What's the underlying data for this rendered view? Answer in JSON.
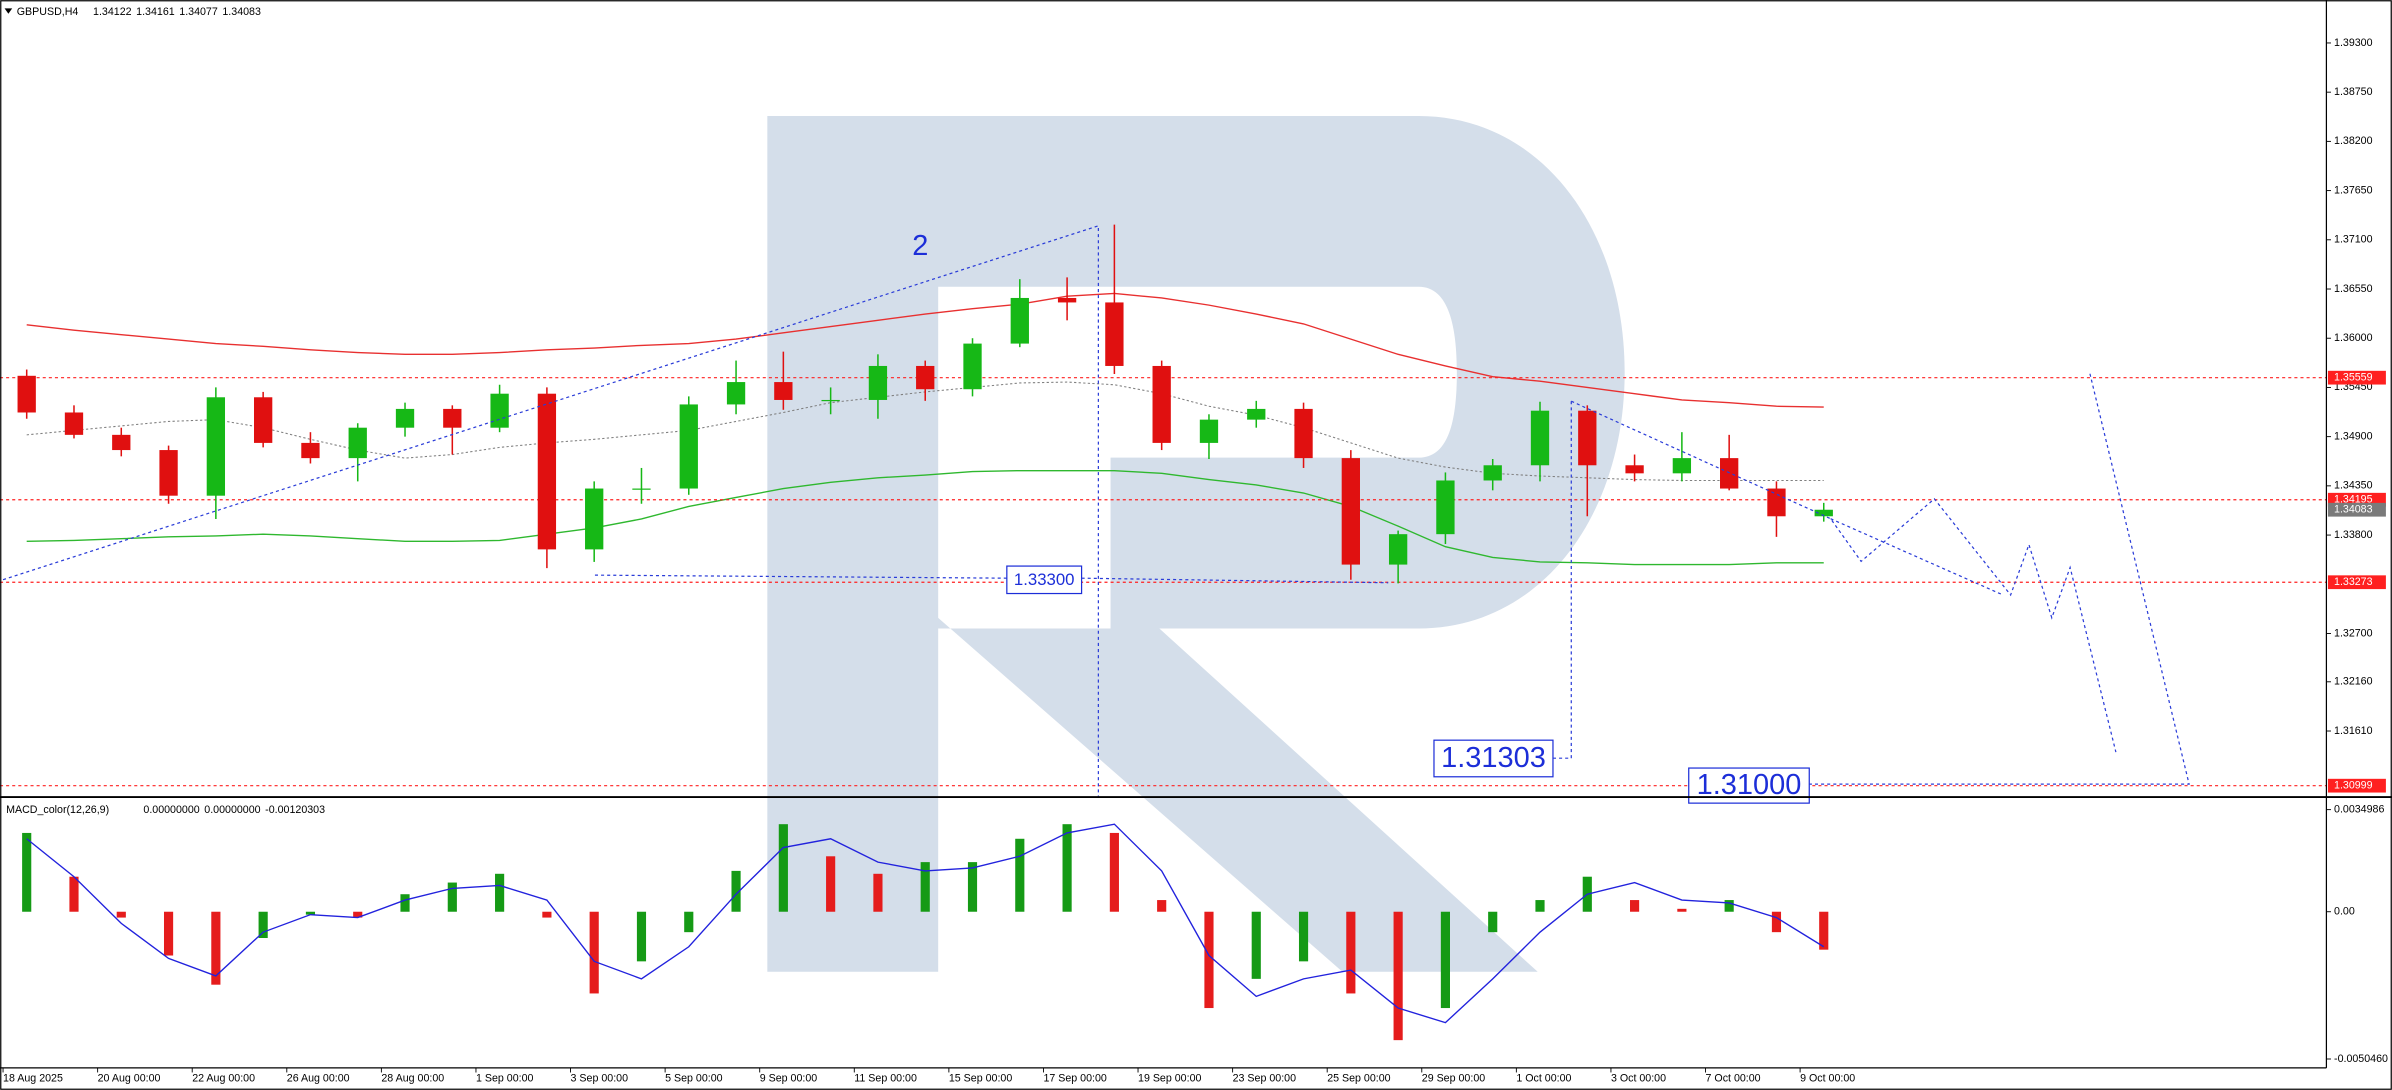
{
  "chart_data": [
    {
      "type": "candlestick",
      "symbol": "GBPUSD,H4",
      "ohlc": [
        1.34122,
        1.34161,
        1.34077,
        1.34083
      ],
      "wave_label": "2",
      "categories": [
        "18 Aug 2025",
        null,
        "20 Aug 00:00",
        null,
        "22 Aug 00:00",
        null,
        "26 Aug 00:00",
        null,
        "28 Aug 00:00",
        null,
        "1 Sep 00:00",
        null,
        "3 Sep 00:00",
        null,
        "5 Sep 00:00",
        null,
        "9 Sep 00:00",
        null,
        "11 Sep 00:00",
        null,
        "15 Sep 00:00",
        null,
        "17 Sep 00:00",
        null,
        "19 Sep 00:00",
        null,
        "23 Sep 00:00",
        null,
        "25 Sep 00:00",
        null,
        "29 Sep 00:00",
        null,
        "1 Oct 00:00",
        null,
        "3 Oct 00:00",
        null,
        "7 Oct 00:00",
        null,
        "9 Oct 00:00"
      ],
      "open": [
        1.3558,
        1.3517,
        1.3492,
        1.3475,
        1.3424,
        1.3534,
        1.3483,
        1.3466,
        1.35,
        1.3521,
        1.35,
        1.3538,
        1.3364,
        1.3432,
        1.3432,
        1.3526,
        1.3551,
        1.3531,
        1.3531,
        1.3569,
        1.3543,
        1.3594,
        1.3645,
        1.364,
        1.3569,
        1.3483,
        1.3509,
        1.3521,
        1.3466,
        1.3347,
        1.3381,
        1.3441,
        1.3458,
        1.3519,
        1.3458,
        1.3449,
        1.3466,
        1.3432,
        1.3401
      ],
      "high": [
        1.3565,
        1.3525,
        1.35,
        1.348,
        1.3545,
        1.354,
        1.3495,
        1.3505,
        1.3528,
        1.3525,
        1.3548,
        1.3545,
        1.344,
        1.3455,
        1.3535,
        1.3575,
        1.3585,
        1.3545,
        1.3582,
        1.3575,
        1.36,
        1.3666,
        1.3668,
        1.3727,
        1.3575,
        1.3515,
        1.353,
        1.3528,
        1.3475,
        1.3385,
        1.345,
        1.3465,
        1.3529,
        1.3525,
        1.347,
        1.3495,
        1.3492,
        1.344,
        1.3416
      ],
      "low": [
        1.351,
        1.3488,
        1.3468,
        1.3415,
        1.3398,
        1.3478,
        1.346,
        1.344,
        1.349,
        1.347,
        1.3495,
        1.3343,
        1.335,
        1.3415,
        1.3425,
        1.3515,
        1.352,
        1.3515,
        1.351,
        1.353,
        1.3535,
        1.359,
        1.362,
        1.356,
        1.3475,
        1.3465,
        1.35,
        1.3455,
        1.333,
        1.3326,
        1.337,
        1.343,
        1.344,
        1.3401,
        1.344,
        1.344,
        1.343,
        1.3378,
        1.3395
      ],
      "close": [
        1.3517,
        1.3492,
        1.3475,
        1.3424,
        1.3534,
        1.3483,
        1.3466,
        1.35,
        1.3521,
        1.35,
        1.3538,
        1.3364,
        1.3432,
        1.3432,
        1.3526,
        1.3551,
        1.3531,
        1.3531,
        1.3569,
        1.3543,
        1.3594,
        1.3645,
        1.364,
        1.3569,
        1.3483,
        1.3509,
        1.3521,
        1.3466,
        1.3347,
        1.3381,
        1.3441,
        1.3458,
        1.3519,
        1.3458,
        1.3449,
        1.3466,
        1.3432,
        1.3401,
        1.34083
      ],
      "up_color": "#16b816",
      "down_color": "#e01010",
      "overlays": [
        {
          "color": "#e83030",
          "dotted": false,
          "values": [
            1.3615,
            1.3609,
            1.3604,
            1.3599,
            1.3594,
            1.3591,
            1.3587,
            1.3584,
            1.3582,
            1.3582,
            1.3584,
            1.3587,
            1.3589,
            1.3592,
            1.3594,
            1.3599,
            1.3606,
            1.3613,
            1.362,
            1.3627,
            1.3633,
            1.3638,
            1.3647,
            1.365,
            1.3645,
            1.3637,
            1.3627,
            1.3616,
            1.3599,
            1.3582,
            1.3569,
            1.3557,
            1.3552,
            1.3545,
            1.3538,
            1.3531,
            1.3528,
            1.3524,
            1.3523
          ]
        },
        {
          "color": "#2fb82f",
          "dotted": false,
          "values": [
            1.3373,
            1.3374,
            1.3376,
            1.3378,
            1.3379,
            1.3381,
            1.3379,
            1.3376,
            1.3373,
            1.3373,
            1.3374,
            1.3381,
            1.3388,
            1.3398,
            1.3412,
            1.3422,
            1.3432,
            1.3439,
            1.3444,
            1.3447,
            1.3451,
            1.3452,
            1.3452,
            1.3452,
            1.3449,
            1.3442,
            1.3436,
            1.3427,
            1.3412,
            1.339,
            1.3367,
            1.3355,
            1.335,
            1.3349,
            1.3347,
            1.3347,
            1.3347,
            1.3349,
            1.3349
          ]
        },
        {
          "color": "#808080",
          "dotted": true,
          "values": [
            1.3492,
            1.3497,
            1.3502,
            1.3507,
            1.3509,
            1.35,
            1.3487,
            1.3475,
            1.3466,
            1.347,
            1.3478,
            1.3483,
            1.3487,
            1.3492,
            1.3497,
            1.3507,
            1.3517,
            1.3528,
            1.3534,
            1.354,
            1.3545,
            1.355,
            1.3551,
            1.3548,
            1.3538,
            1.3524,
            1.3514,
            1.35,
            1.3483,
            1.3466,
            1.3456,
            1.3449,
            1.3446,
            1.3444,
            1.3442,
            1.3441,
            1.3441,
            1.3441,
            1.3441
          ]
        }
      ],
      "ylim": [
        1.3088,
        1.3978
      ],
      "yticks": [
        {
          "value": 1.393,
          "label": "1.39300"
        },
        {
          "value": 1.3875,
          "label": "1.38750"
        },
        {
          "value": 1.382,
          "label": "1.38200"
        },
        {
          "value": 1.3765,
          "label": "1.37650"
        },
        {
          "value": 1.371,
          "label": "1.37100"
        },
        {
          "value": 1.3655,
          "label": "1.36550"
        },
        {
          "value": 1.36,
          "label": "1.36000"
        },
        {
          "value": 1.3545,
          "label": "1.35450"
        },
        {
          "value": 1.349,
          "label": "1.34900"
        },
        {
          "value": 1.3435,
          "label": "1.34350"
        },
        {
          "value": 1.338,
          "label": "1.33800"
        },
        {
          "value": 1.327,
          "label": "1.32700"
        },
        {
          "value": 1.3216,
          "label": "1.32160"
        },
        {
          "value": 1.3161,
          "label": "1.31610"
        }
      ],
      "price_levels": [
        {
          "value": 1.35559,
          "color": "#ff2020",
          "line": true
        },
        {
          "value": 1.34195,
          "color": "#ff2020",
          "line": true
        },
        {
          "value": 1.34083,
          "color": "#7a7a7a",
          "line": false
        },
        {
          "value": 1.33273,
          "color": "#ff2020",
          "line": true
        },
        {
          "value": 1.30999,
          "color": "#ff2020",
          "line": true
        }
      ],
      "targets": [
        {
          "value": 1.333,
          "label": "1.33300"
        },
        {
          "value": 1.31303,
          "label": "1.31303"
        },
        {
          "value": 1.31,
          "label": "1.31000"
        }
      ]
    },
    {
      "type": "bar",
      "title": "MACD_color(12,26,9)",
      "title_values": [
        {
          "value": 0,
          "label": "0.00000000"
        },
        {
          "value": 0,
          "label": "0.00000000"
        },
        -0.00120303
      ],
      "values": [
        0.0027,
        0.0012,
        -0.0002,
        -0.0015,
        -0.0025,
        -0.0009,
        -0.0001,
        -0.0002,
        0.0006,
        0.001,
        0.0013,
        -0.0002,
        -0.0028,
        -0.0017,
        -0.0007,
        0.0014,
        0.003,
        0.0019,
        0.0013,
        0.0017,
        0.0017,
        0.0025,
        0.003,
        0.0027,
        0.0004,
        -0.0033,
        -0.0023,
        -0.0017,
        -0.0028,
        -0.0044,
        -0.0033,
        -0.0007,
        0.0004,
        0.0012,
        0.0004,
        0.0001,
        0.0004,
        -0.0007,
        -0.0013
      ],
      "signal": [
        0.0025,
        0.0012,
        -0.0004,
        -0.0016,
        -0.0022,
        -0.0007,
        -0.0001,
        -0.0002,
        0.0004,
        0.0008,
        0.0009,
        0.0004,
        -0.0017,
        -0.0023,
        -0.0012,
        0.0006,
        0.0022,
        0.0025,
        0.0017,
        0.0014,
        0.0015,
        0.0019,
        0.0027,
        0.003,
        0.0014,
        -0.0015,
        -0.0029,
        -0.0023,
        -0.002,
        -0.0033,
        -0.0038,
        -0.0023,
        -0.0007,
        0.0006,
        0.001,
        0.0004,
        0.0003,
        -0.0002,
        -0.0012
      ],
      "up_color": "#159a15",
      "down_color": "#e51c1c",
      "signal_color": "#2222dd",
      "ylim": [
        -0.00535,
        0.00385
      ],
      "yticks": [
        0.0034986,
        {
          "value": 0,
          "label": "0.00"
        },
        {
          "value": -0.005046,
          "label": "-0.0050460"
        }
      ]
    }
  ]
}
